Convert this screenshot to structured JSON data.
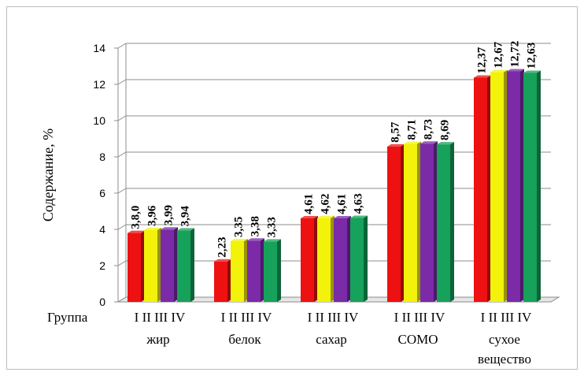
{
  "chart_data": {
    "type": "bar",
    "ylabel": "Содержание, %",
    "ylim": [
      0,
      14
    ],
    "yticks": [
      "0",
      "2",
      "4",
      "6",
      "8",
      "10",
      "12",
      "14"
    ],
    "grid": true,
    "style": "3d-bars",
    "group_row_label": "Группа",
    "group_labels": [
      "I",
      "II",
      "III",
      "IV"
    ],
    "categories": [
      "жир",
      "белок",
      "сахар",
      "СОМО",
      "сухое вещество"
    ],
    "category_lines": [
      [
        "жир"
      ],
      [
        "белок"
      ],
      [
        "сахар"
      ],
      [
        "СОМО"
      ],
      [
        "сухое",
        "вещество"
      ]
    ],
    "series": [
      {
        "name": "I",
        "color": "#ee1111",
        "values": [
          3.8,
          2.23,
          4.61,
          8.57,
          12.37
        ],
        "labels": [
          "3,8,0",
          "2,23",
          "4,61",
          "8,57",
          "12,37"
        ]
      },
      {
        "name": "II",
        "color": "#f2f20a",
        "values": [
          3.96,
          3.35,
          4.62,
          8.71,
          12.67
        ],
        "labels": [
          "3,96",
          "3,35",
          "4,62",
          "8,71",
          "12,67"
        ]
      },
      {
        "name": "III",
        "color": "#7b2aa8",
        "values": [
          3.99,
          3.38,
          4.61,
          8.73,
          12.72
        ],
        "labels": [
          "3,99",
          "3,38",
          "4,61",
          "8,73",
          "12,72"
        ]
      },
      {
        "name": "IV",
        "color": "#16a25a",
        "values": [
          3.94,
          3.33,
          4.63,
          8.69,
          12.63
        ],
        "labels": [
          "3,94",
          "3,33",
          "4,63",
          "8,69",
          "12,63"
        ]
      }
    ]
  }
}
